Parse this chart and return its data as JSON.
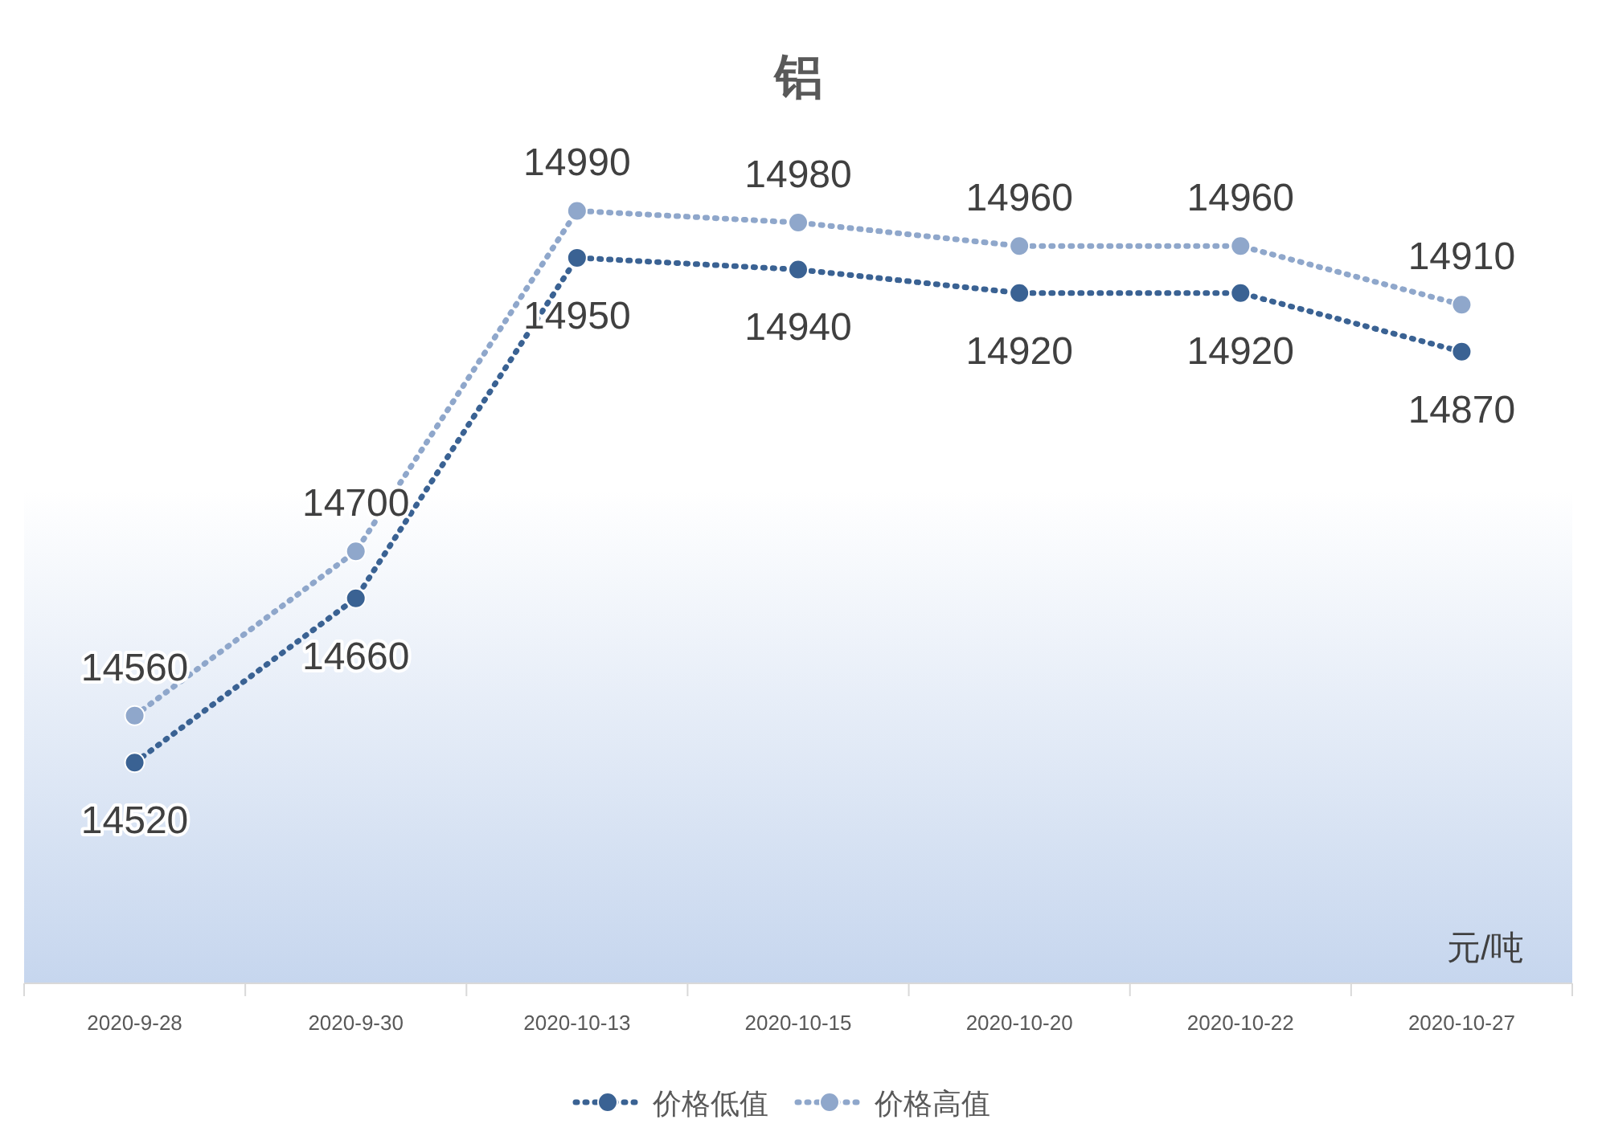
{
  "chart_data": {
    "type": "line",
    "title": "铝",
    "categories": [
      "2020-9-28",
      "2020-9-30",
      "2020-10-13",
      "2020-10-15",
      "2020-10-20",
      "2020-10-22",
      "2020-10-27"
    ],
    "series": [
      {
        "name": "价格低值",
        "color": "#3a6293",
        "values": [
          14520,
          14660,
          14950,
          14940,
          14920,
          14920,
          14870
        ]
      },
      {
        "name": "价格高值",
        "color": "#8fa7cb",
        "values": [
          14560,
          14700,
          14990,
          14980,
          14960,
          14960,
          14910
        ]
      }
    ],
    "annotations": [
      "元/吨"
    ],
    "data_labels": true,
    "legend": "bottom",
    "marker": "circle",
    "line_style": "dotted"
  }
}
